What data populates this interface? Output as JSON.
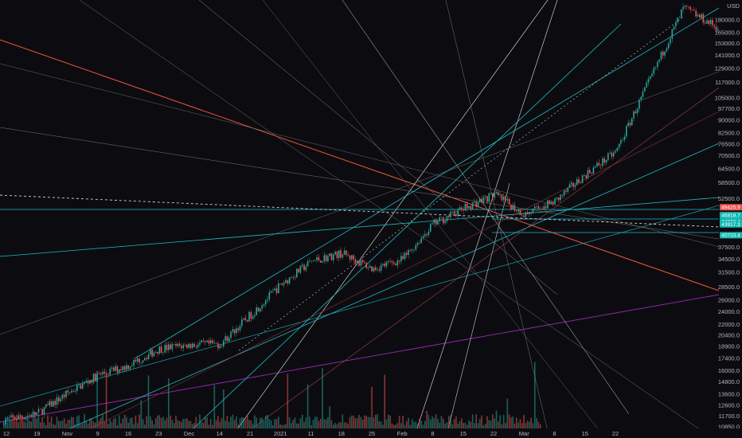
{
  "colors": {
    "background": "#0c0c10",
    "axis_text": "#b2b5be",
    "candle_up": "#26a69a",
    "candle_down": "#ef5350",
    "teal_line": "#1fb8c4",
    "white_line": "#c8c8c8",
    "red_line": "#f0553c",
    "purple_line": "#9c27b0",
    "tag_teal": "#14b8b0",
    "tag_red": "#ef5350"
  },
  "chart_data": {
    "type": "candlestick",
    "price_unit": "USD",
    "log_scale": true,
    "grid": false,
    "ylim": [
      10850,
      200000
    ],
    "y_ticks": [
      "180000.0",
      "165000.0",
      "153000.0",
      "141000.0",
      "129000.0",
      "117000.0",
      "105000.0",
      "97700.0",
      "90000.0",
      "82500.0",
      "76500.0",
      "70500.0",
      "64500.0",
      "58500.0",
      "52500.0",
      "37500.0",
      "34500.0",
      "31500.0",
      "28500.0",
      "26000.0",
      "24000.0",
      "22000.0",
      "20400.0",
      "18900.0",
      "17400.0",
      "16000.0",
      "14800.0",
      "13600.0",
      "12600.0",
      "11700.0",
      "10850.0"
    ],
    "x_ticks": [
      "12",
      "19",
      "Nov",
      "9",
      "16",
      "23",
      "Dec",
      "14",
      "21",
      "2021",
      "11",
      "18",
      "25",
      "Feb",
      "8",
      "15",
      "22",
      "Mar",
      "8",
      "15",
      "22"
    ],
    "price_path": [
      {
        "t": "12",
        "close": 11400
      },
      {
        "t": "19",
        "close": 11900
      },
      {
        "t": "Nov",
        "close": 13700
      },
      {
        "t": "9",
        "close": 15500
      },
      {
        "t": "16",
        "close": 16600
      },
      {
        "t": "23",
        "close": 18600
      },
      {
        "t": "Dec",
        "close": 19100
      },
      {
        "t": "14",
        "close": 19200
      },
      {
        "t": "21",
        "close": 23500
      },
      {
        "t": "2021",
        "close": 29000
      },
      {
        "t": "11",
        "close": 34000
      },
      {
        "t": "18",
        "close": 36000
      },
      {
        "t": "25",
        "close": 32300
      },
      {
        "t": "Feb",
        "close": 34500
      },
      {
        "t": "8",
        "close": 44000
      },
      {
        "t": "15",
        "close": 49000
      },
      {
        "t": "22",
        "close": 54000
      },
      {
        "t": "Mar",
        "close": 47000
      },
      {
        "t": "8",
        "close": 51500
      },
      {
        "t": "15",
        "close": 62000
      },
      {
        "t": "22",
        "close": 72500
      },
      {
        "t": "peak",
        "close": 196000
      },
      {
        "t": "last",
        "close": 170000
      }
    ],
    "price_tags": [
      {
        "value": "49425.9",
        "color": "red"
      },
      {
        "value": "46818.7",
        "color": "teal"
      },
      {
        "value": "44822.4",
        "color": "teal"
      },
      {
        "value": "43917.3",
        "color": "teal"
      },
      {
        "value": "40733.4",
        "color": "teal"
      }
    ]
  }
}
